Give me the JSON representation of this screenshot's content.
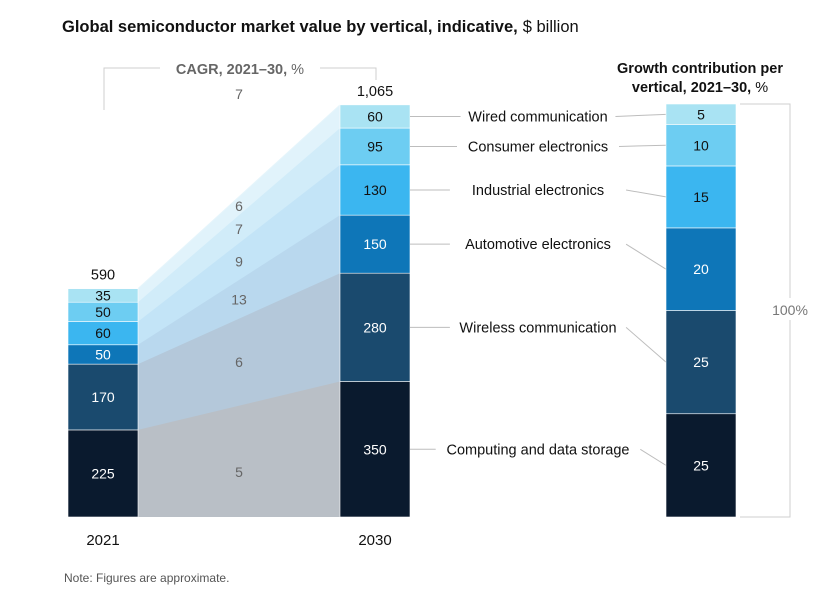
{
  "title": {
    "bold": "Global semiconductor market value by vertical, indicative,",
    "unit": "$ billion"
  },
  "cagr_label": {
    "bold": "CAGR, 2021–30,",
    "unit": "%"
  },
  "growth_title": {
    "line1": "Growth contribution per",
    "line2_bold": "vertical, 2021–30,",
    "line2_unit": "%"
  },
  "growth_total": "100%",
  "note": "Note: Figures are approximate.",
  "chart_data": {
    "type": "stacked-bar",
    "categories": [
      "2021",
      "2030"
    ],
    "totals": [
      "590",
      "1,065"
    ],
    "series": [
      {
        "name": "Computing and data storage",
        "values": [
          225,
          350
        ],
        "cagr": 5,
        "growth": 25,
        "color": "#0a1a2e"
      },
      {
        "name": "Wireless communication",
        "values": [
          170,
          280
        ],
        "cagr": 6,
        "growth": 25,
        "color": "#1a4a6e"
      },
      {
        "name": "Automotive electronics",
        "values": [
          50,
          150
        ],
        "cagr": 13,
        "growth": 20,
        "color": "#0e76b8"
      },
      {
        "name": "Industrial electronics",
        "values": [
          60,
          130
        ],
        "cagr": 9,
        "growth": 15,
        "color": "#3bb6f0"
      },
      {
        "name": "Consumer electronics",
        "values": [
          50,
          95
        ],
        "cagr": 7,
        "growth": 10,
        "color": "#6dcdf2"
      },
      {
        "name": "Wired communication",
        "values": [
          35,
          60
        ],
        "cagr": 6,
        "growth": 5,
        "color": "#a9e3f3"
      }
    ],
    "overall_cagr": 7,
    "growth_contribution_total": "100%"
  }
}
